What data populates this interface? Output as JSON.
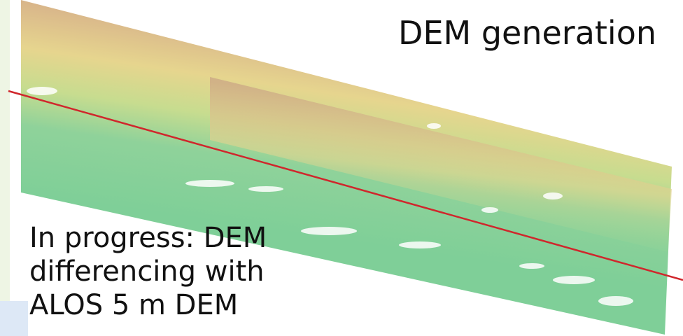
{
  "title": "DEM generation",
  "caption": {
    "lines": [
      "In progress: DEM",
      "differencing with",
      "ALOS 5 m DEM"
    ]
  }
}
